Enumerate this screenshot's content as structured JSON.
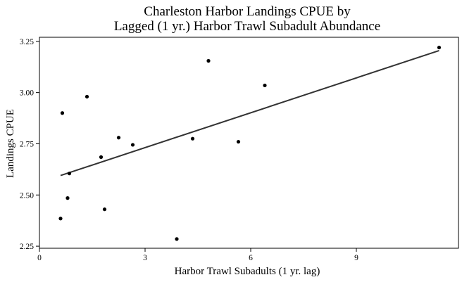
{
  "chart_data": {
    "type": "scatter",
    "title_lines": [
      "Charleston Harbor Landings CPUE by",
      "Lagged (1 yr.) Harbor Trawl Subadult Abundance"
    ],
    "xlabel": "Harbor Trawl Subadults (1 yr. lag)",
    "ylabel": "Landings CPUE",
    "xlim": [
      0,
      11.9
    ],
    "ylim": [
      2.24,
      3.27
    ],
    "x_ticks": [
      0,
      3,
      6,
      9
    ],
    "x_tick_labels": [
      "0",
      "3",
      "6",
      "9"
    ],
    "y_ticks": [
      2.25,
      2.5,
      2.75,
      3.0,
      3.25
    ],
    "y_tick_labels": [
      "2.25",
      "2.50",
      "2.75",
      "3.00",
      "3.25"
    ],
    "grid": false,
    "points": [
      {
        "x": 0.6,
        "y": 2.385
      },
      {
        "x": 0.65,
        "y": 2.9
      },
      {
        "x": 0.8,
        "y": 2.485
      },
      {
        "x": 0.85,
        "y": 2.605
      },
      {
        "x": 1.35,
        "y": 2.98
      },
      {
        "x": 1.75,
        "y": 2.685
      },
      {
        "x": 1.85,
        "y": 2.43
      },
      {
        "x": 2.25,
        "y": 2.78
      },
      {
        "x": 2.65,
        "y": 2.745
      },
      {
        "x": 3.9,
        "y": 2.285
      },
      {
        "x": 4.35,
        "y": 2.775
      },
      {
        "x": 4.8,
        "y": 3.155
      },
      {
        "x": 5.65,
        "y": 2.76
      },
      {
        "x": 6.4,
        "y": 3.035
      },
      {
        "x": 11.35,
        "y": 3.22
      }
    ],
    "fit_line": {
      "x": [
        0.6,
        11.35
      ],
      "y": [
        2.595,
        3.205
      ]
    },
    "colors": {
      "points": "#000000",
      "line": "#333333",
      "axis": "#000000"
    }
  }
}
